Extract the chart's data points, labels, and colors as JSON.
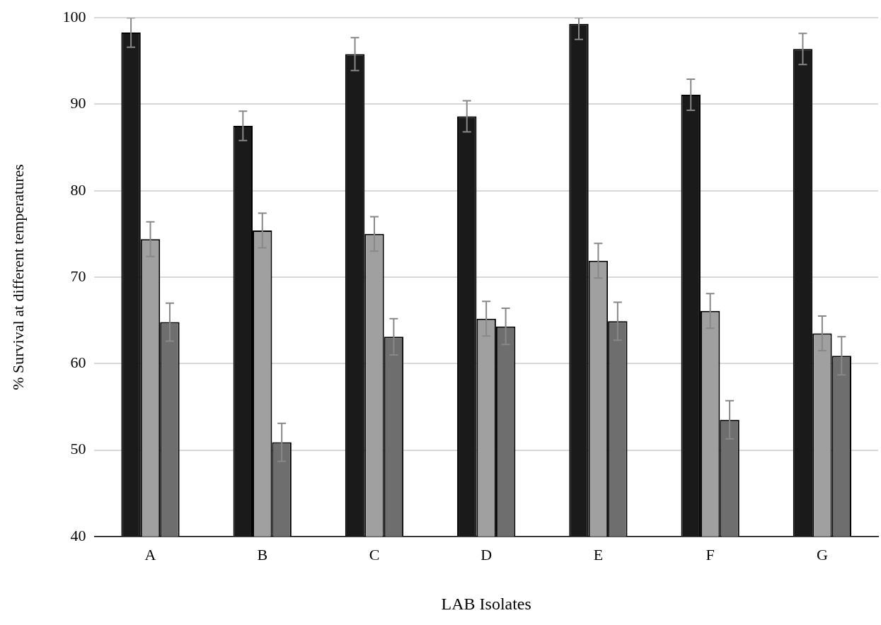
{
  "chart_data": {
    "type": "bar",
    "xlabel": "LAB Isolates",
    "ylabel": "% Survival at different temperatures",
    "categories": [
      "A",
      "B",
      "C",
      "D",
      "E",
      "F",
      "G"
    ],
    "series": [
      {
        "color": "#1a1a1a",
        "values": [
          98.3,
          87.5,
          95.8,
          88.6,
          99.3,
          91.1,
          96.4
        ],
        "errors": [
          1.7,
          1.7,
          1.9,
          1.8,
          [
            97.5,
            100
          ],
          1.8,
          1.8
        ]
      },
      {
        "color": "#a0a0a0",
        "values": [
          74.4,
          75.4,
          75.0,
          65.2,
          71.9,
          66.1,
          63.5
        ],
        "errors": [
          2.0,
          2.0,
          2.0,
          2.0,
          2.0,
          2.0,
          2.0
        ]
      },
      {
        "color": "#6e6e6e",
        "values": [
          64.8,
          50.9,
          63.1,
          64.3,
          64.9,
          53.5,
          60.9
        ],
        "errors": [
          2.2,
          2.2,
          2.1,
          2.1,
          2.2,
          2.2,
          2.2
        ]
      }
    ],
    "ylim": [
      40,
      100
    ],
    "yticks": [
      40,
      50,
      60,
      70,
      80,
      90,
      100
    ],
    "grid": "y",
    "legend": false
  }
}
